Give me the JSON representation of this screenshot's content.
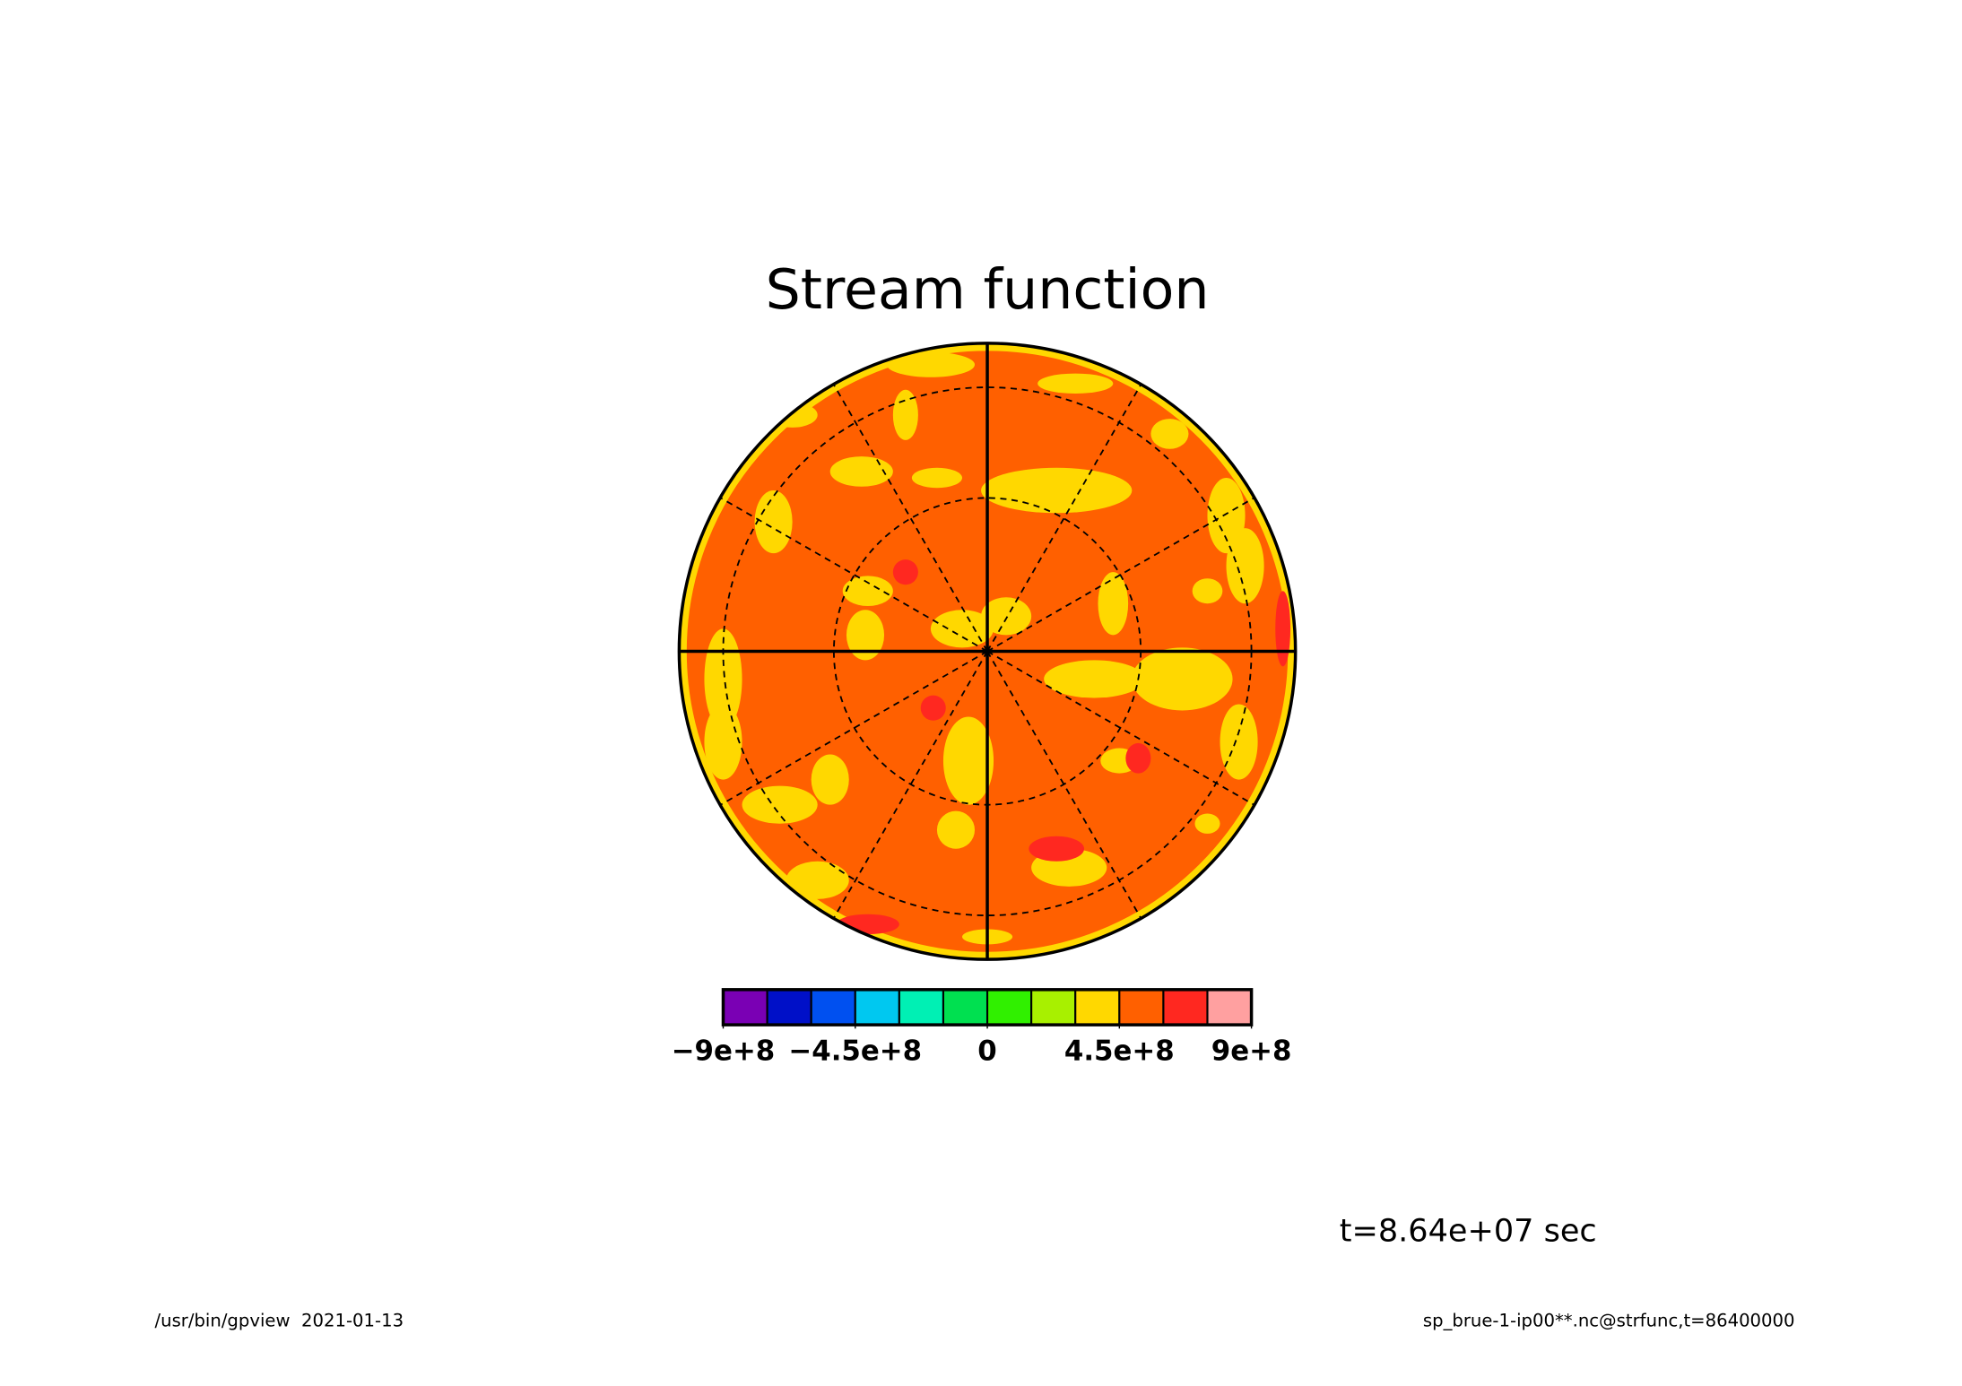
{
  "chart_data": {
    "type": "contour",
    "title": "Stream function",
    "colorbar": {
      "levels": [
        -900000000,
        -750000000,
        -600000000,
        -450000000,
        -300000000,
        -150000000,
        0,
        150000000,
        300000000,
        450000000,
        600000000,
        750000000,
        900000000
      ],
      "colors": [
        "#7a00b4",
        "#0010c8",
        "#0050f0",
        "#00c8f0",
        "#00f0b4",
        "#00e050",
        "#30f000",
        "#a8f000",
        "#ffd800",
        "#ff6000",
        "#ff2820",
        "#ffa0a0"
      ],
      "lim": [
        -900000000,
        900000000
      ],
      "ticks": [
        {
          "value": -900000000,
          "label": "−9e+8"
        },
        {
          "value": -450000000,
          "label": "−4.5e+8"
        },
        0,
        {
          "value": 450000000,
          "label": "4.5e+8"
        },
        {
          "value": 900000000,
          "label": "9e+8"
        }
      ]
    },
    "annotation": "t=8.64e+07 sec"
  },
  "footer": {
    "left": "/usr/bin/gpview  2021-01-13",
    "right": "sp_brue-1-ip00**.nc@strfunc,t=86400000"
  }
}
